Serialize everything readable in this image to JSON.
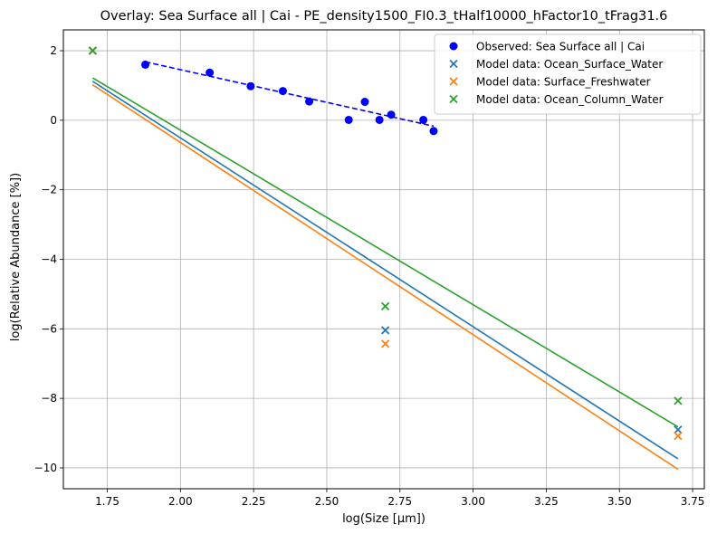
{
  "chart_data": {
    "type": "scatter",
    "title": "Overlay: Sea Surface all | Cai - PE_density1500_FI0.3_tHalf10000_hFactor10_tFrag31.6",
    "xlabel": "log(Size [µm])",
    "ylabel": "log(Relative Abundance [%])",
    "xlim": [
      1.6,
      3.79
    ],
    "ylim": [
      -10.6,
      2.6
    ],
    "xticks": [
      1.75,
      2.0,
      2.25,
      2.5,
      2.75,
      3.0,
      3.25,
      3.5,
      3.75
    ],
    "xtick_labels": [
      "1.75",
      "2.00",
      "2.25",
      "2.50",
      "2.75",
      "3.00",
      "3.25",
      "3.50",
      "3.75"
    ],
    "yticks": [
      2,
      0,
      -2,
      -4,
      -6,
      -8,
      -10
    ],
    "ytick_labels": [
      "2",
      "0",
      "−2",
      "−4",
      "−6",
      "−8",
      "−10"
    ],
    "grid": true,
    "legend_position": "top-right",
    "series": [
      {
        "name": "Observed: Sea Surface all | Cai",
        "marker": "circle",
        "color": "#0000ff",
        "x": [
          1.88,
          2.1,
          2.24,
          2.35,
          2.44,
          2.575,
          2.63,
          2.68,
          2.72,
          2.83,
          2.865
        ],
        "y": [
          1.6,
          1.37,
          0.98,
          0.84,
          0.54,
          0.01,
          0.53,
          0.01,
          0.16,
          0.01,
          -0.31
        ],
        "fit": {
          "x": [
            1.88,
            2.865
          ],
          "y": [
            1.68,
            -0.17
          ],
          "style": "dashed"
        }
      },
      {
        "name": "Model data: Ocean_Surface_Water",
        "marker": "x",
        "color": "#1f77b4",
        "x": [
          1.7,
          2.7,
          3.7
        ],
        "y": [
          2.0,
          -6.04,
          -8.9
        ],
        "fit": {
          "x": [
            1.7,
            3.7
          ],
          "y": [
            1.12,
            -9.74
          ],
          "style": "solid"
        }
      },
      {
        "name": "Model data: Surface_Freshwater",
        "marker": "x",
        "color": "#ff7f0e",
        "x": [
          1.7,
          2.7,
          3.7
        ],
        "y": [
          2.0,
          -6.43,
          -9.08
        ],
        "fit": {
          "x": [
            1.7,
            3.7
          ],
          "y": [
            1.02,
            -10.04
          ],
          "style": "solid"
        }
      },
      {
        "name": "Model data: Ocean_Column_Water",
        "marker": "x",
        "color": "#2ca02c",
        "x": [
          1.7,
          2.7,
          3.7
        ],
        "y": [
          2.0,
          -5.35,
          -8.07
        ],
        "fit": {
          "x": [
            1.7,
            3.7
          ],
          "y": [
            1.22,
            -8.82
          ],
          "style": "solid"
        }
      }
    ]
  }
}
